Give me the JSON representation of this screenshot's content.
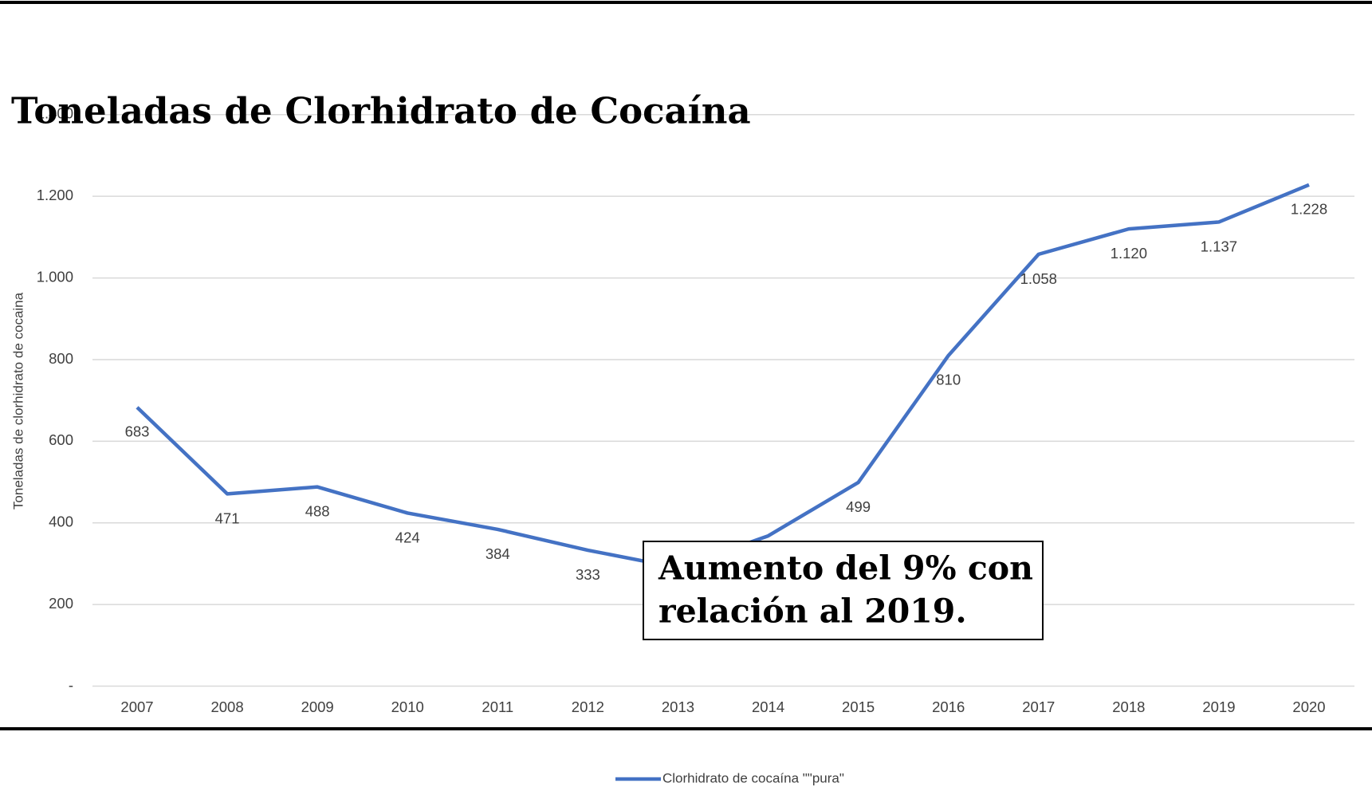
{
  "chart_data": {
    "type": "line",
    "title": "Toneladas de Clorhidrato de Cocaína",
    "y_label": "Toneladas de clorhidrato de cocaina",
    "annotation": [
      "Aumento del 9% con",
      "relación al 2019."
    ],
    "categories": [
      "2007",
      "2008",
      "2009",
      "2010",
      "2011",
      "2012",
      "2013",
      "2014",
      "2015",
      "2016",
      "2017",
      "2018",
      "2019",
      "2020"
    ],
    "series": [
      {
        "name": "Clorhidrato de cocaína \"\"pura\"",
        "color": "#4472c4",
        "values": [
          683,
          471,
          488,
          424,
          384,
          333,
          290,
          368,
          499,
          810,
          1058,
          1120,
          1137,
          1228
        ],
        "value_labels": [
          "683",
          "471",
          "488",
          "424",
          "384",
          "333",
          null,
          null,
          "499",
          "810",
          "1.058",
          "1.120",
          "1.137",
          "1.228"
        ]
      }
    ],
    "ylim": [
      0,
      1400
    ],
    "yticks": [
      {
        "value": 0,
        "label": "-"
      },
      200,
      400,
      600,
      800,
      {
        "value": 1000,
        "label": "1.000"
      },
      {
        "value": 1200,
        "label": "1.200"
      },
      {
        "value": 1400,
        "label": "1.400"
      }
    ],
    "grid": true,
    "legend": "bottom"
  }
}
